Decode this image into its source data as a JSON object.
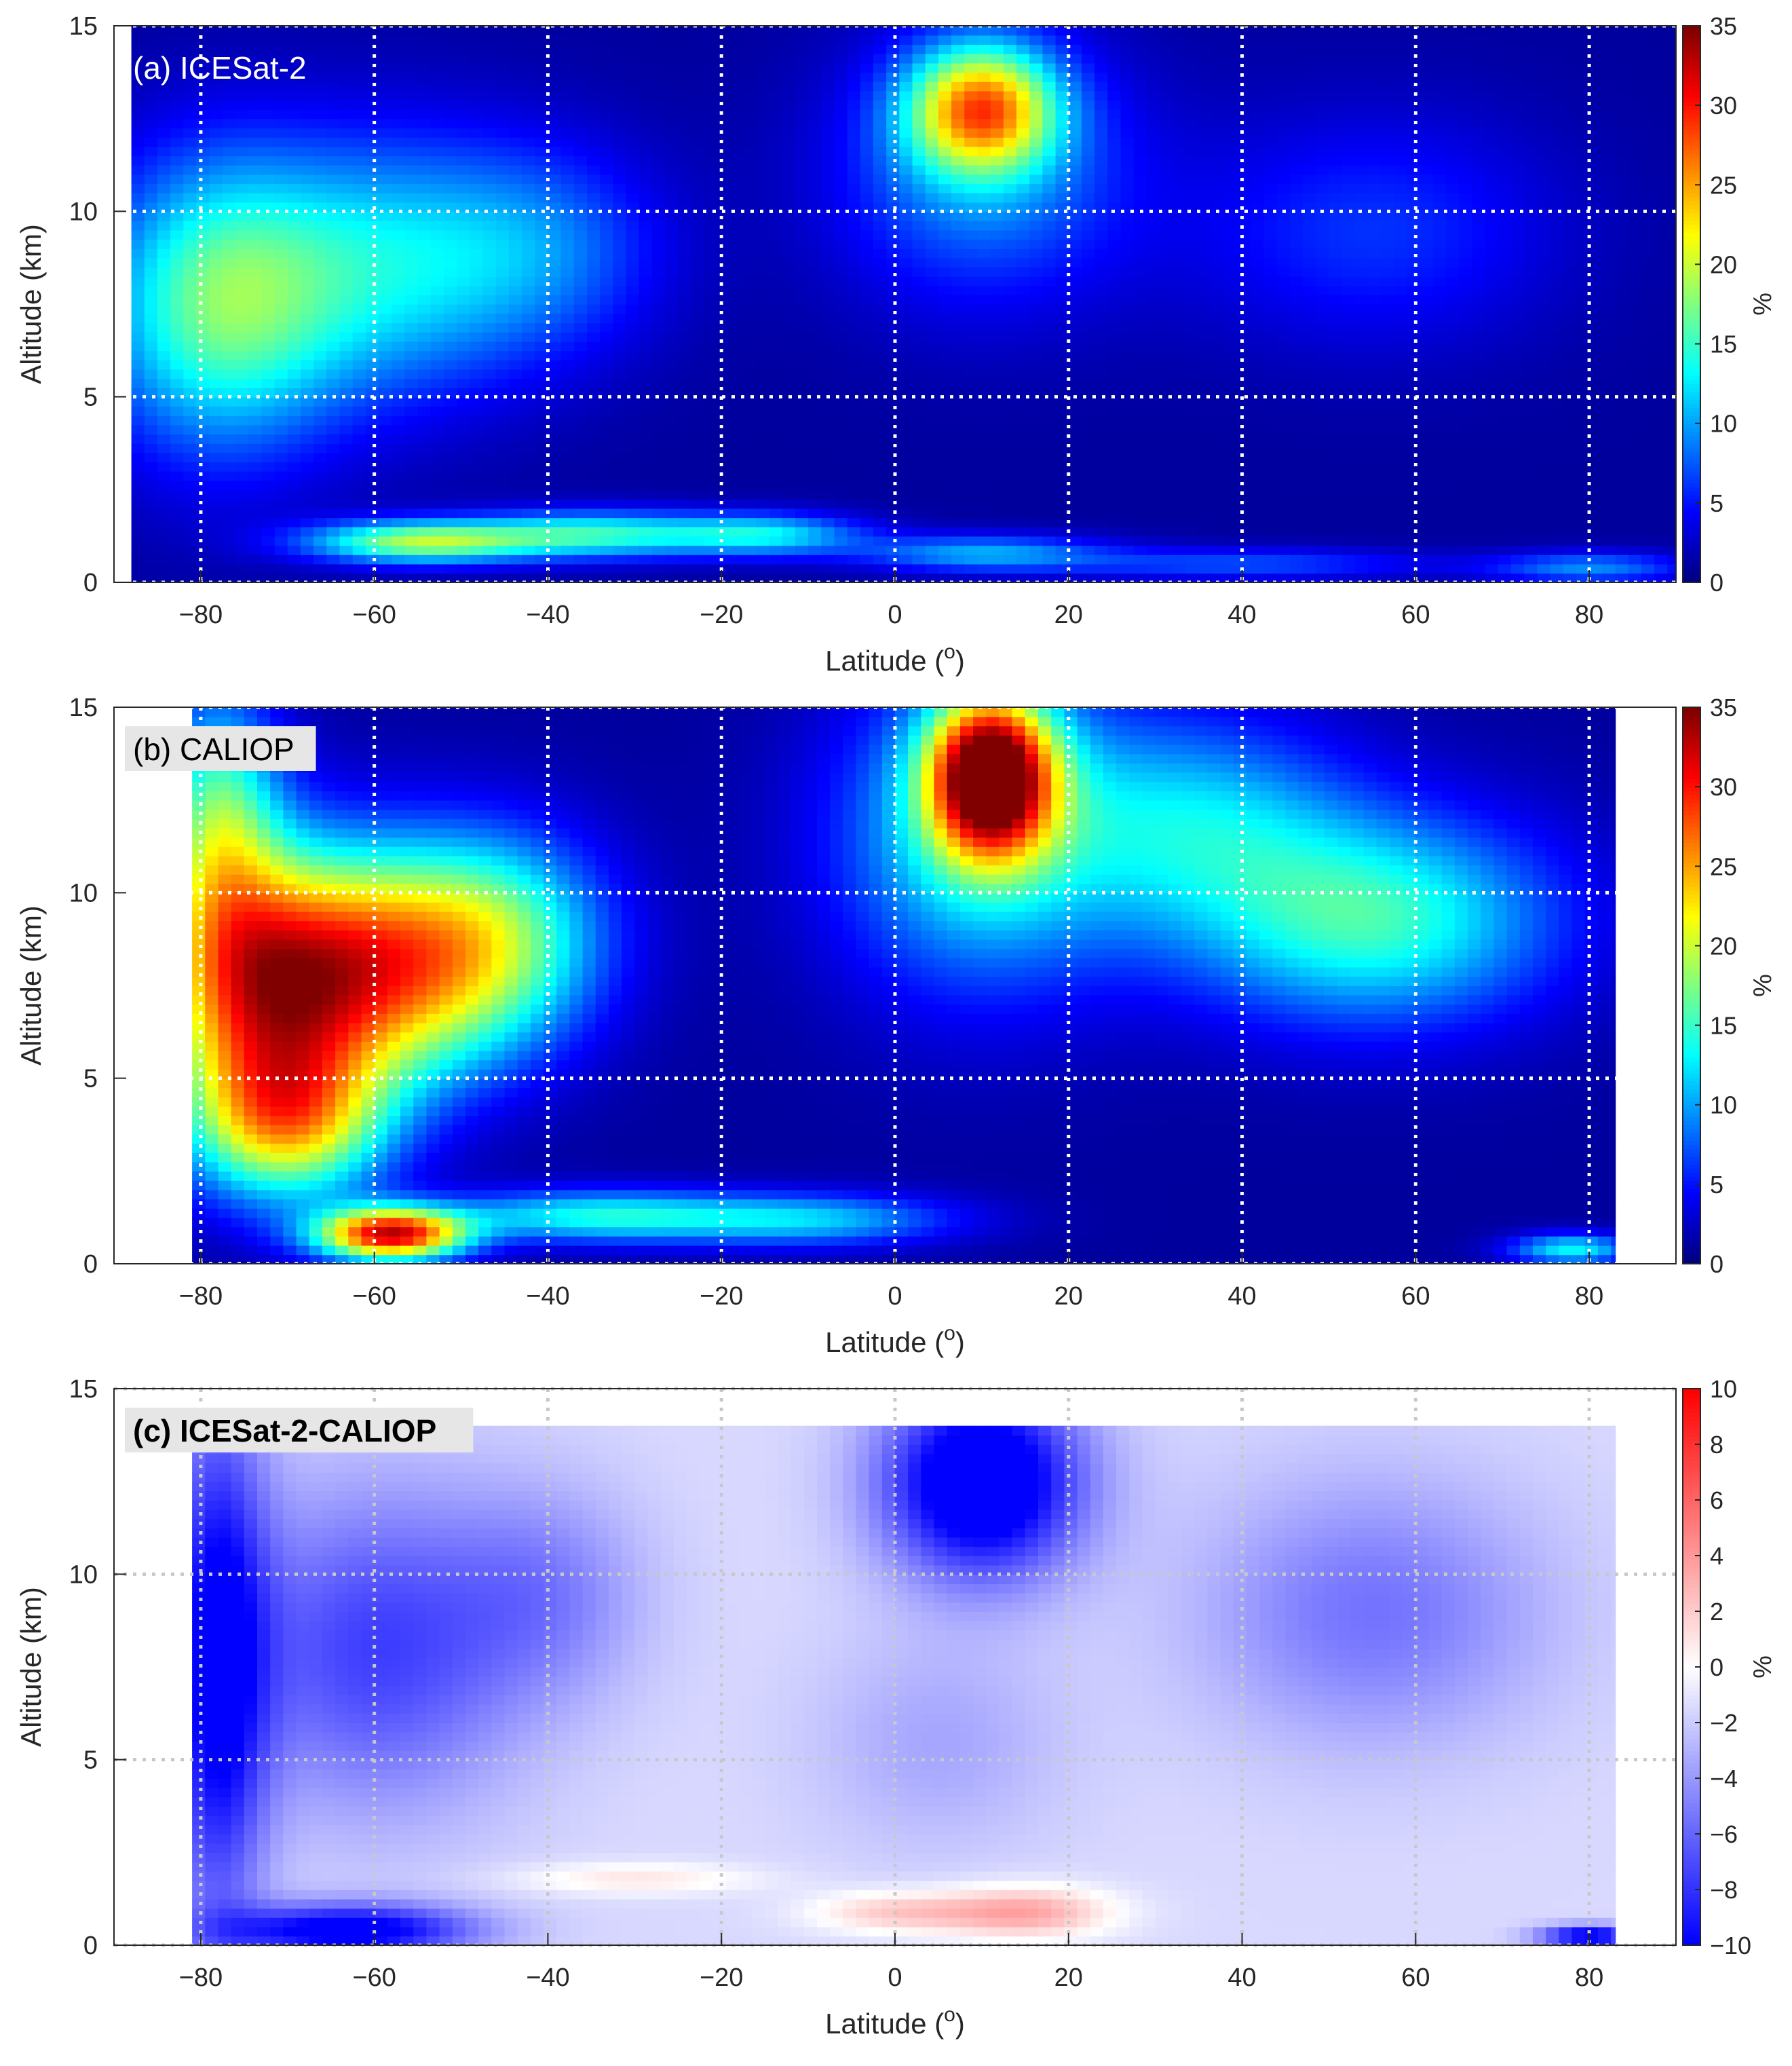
{
  "chart_data": [
    {
      "type": "heatmap",
      "panel_label": "(a) ICESat-2",
      "xlabel": "Latitude (",
      "xlabel_degree": "o",
      "xlabel_close": ")",
      "ylabel": "Altitude (km)",
      "colorbar_label": "%",
      "colormap": "jet",
      "xlim": [
        -90,
        90
      ],
      "ylim": [
        0,
        15
      ],
      "clim": [
        0,
        35
      ],
      "data_lat_range": [
        -88,
        90
      ],
      "x_ticks": [
        "-80",
        "-60",
        "-40",
        "-20",
        "0",
        "20",
        "40",
        "60",
        "80"
      ],
      "y_ticks": [
        "0",
        "5",
        "10",
        "15"
      ],
      "colorbar_ticks": [
        "0",
        "5",
        "10",
        "15",
        "20",
        "25",
        "30",
        "35"
      ],
      "grid": "dotted white",
      "features": [
        {
          "lat": 10,
          "alt": 12.8,
          "sigma_lat": 6,
          "sigma_alt": 1.2,
          "value": 22
        },
        {
          "lat": 10,
          "alt": 11.0,
          "sigma_lat": 12,
          "sigma_alt": 2.5,
          "value": 8
        },
        {
          "lat": -78,
          "alt": 7.5,
          "sigma_lat": 10,
          "sigma_alt": 2.8,
          "value": 15
        },
        {
          "lat": -58,
          "alt": 8.5,
          "sigma_lat": 12,
          "sigma_alt": 2.5,
          "value": 10
        },
        {
          "lat": -40,
          "alt": 9.0,
          "sigma_lat": 10,
          "sigma_alt": 2.0,
          "value": 6
        },
        {
          "lat": 55,
          "alt": 9.5,
          "sigma_lat": 15,
          "sigma_alt": 2.2,
          "value": 5
        },
        {
          "lat": -55,
          "alt": 1.1,
          "sigma_lat": 9,
          "sigma_alt": 0.4,
          "value": 17
        },
        {
          "lat": -35,
          "alt": 1.3,
          "sigma_lat": 10,
          "sigma_alt": 0.45,
          "value": 13
        },
        {
          "lat": -15,
          "alt": 1.3,
          "sigma_lat": 8,
          "sigma_alt": 0.4,
          "value": 11
        },
        {
          "lat": 10,
          "alt": 0.8,
          "sigma_lat": 10,
          "sigma_alt": 0.35,
          "value": 9
        },
        {
          "lat": 40,
          "alt": 0.5,
          "sigma_lat": 15,
          "sigma_alt": 0.3,
          "value": 6
        },
        {
          "lat": 80,
          "alt": 0.4,
          "sigma_lat": 8,
          "sigma_alt": 0.3,
          "value": 8
        }
      ]
    },
    {
      "type": "heatmap",
      "panel_label": "(b) CALIOP",
      "xlabel": "Latitude (",
      "xlabel_degree": "o",
      "xlabel_close": ")",
      "ylabel": "Altitude (km)",
      "colorbar_label": "%",
      "colormap": "jet",
      "xlim": [
        -90,
        90
      ],
      "ylim": [
        0,
        15
      ],
      "clim": [
        0,
        35
      ],
      "data_lat_range": [
        -81,
        83
      ],
      "x_ticks": [
        "-80",
        "-60",
        "-40",
        "-20",
        "0",
        "20",
        "40",
        "60",
        "80"
      ],
      "y_ticks": [
        "0",
        "5",
        "10",
        "15"
      ],
      "colorbar_ticks": [
        "0",
        "5",
        "10",
        "15",
        "20",
        "25",
        "30",
        "35"
      ],
      "grid": "dotted white",
      "features": [
        {
          "lat": 11,
          "alt": 13.2,
          "sigma_lat": 5,
          "sigma_alt": 1.5,
          "value": 33
        },
        {
          "lat": 10,
          "alt": 11.5,
          "sigma_lat": 12,
          "sigma_alt": 3.0,
          "value": 12
        },
        {
          "lat": -73,
          "alt": 7.5,
          "sigma_lat": 9,
          "sigma_alt": 2.5,
          "value": 25
        },
        {
          "lat": -58,
          "alt": 8.0,
          "sigma_lat": 10,
          "sigma_alt": 2.2,
          "value": 20
        },
        {
          "lat": -45,
          "alt": 8.8,
          "sigma_lat": 9,
          "sigma_alt": 2.0,
          "value": 12
        },
        {
          "lat": -78,
          "alt": 12.0,
          "sigma_lat": 5,
          "sigma_alt": 2.5,
          "value": 14
        },
        {
          "lat": -70,
          "alt": 3.8,
          "sigma_lat": 8,
          "sigma_alt": 1.5,
          "value": 18
        },
        {
          "lat": 55,
          "alt": 9.3,
          "sigma_lat": 15,
          "sigma_alt": 2.0,
          "value": 14
        },
        {
          "lat": 35,
          "alt": 12.0,
          "sigma_lat": 12,
          "sigma_alt": 2.0,
          "value": 9
        },
        {
          "lat": -58,
          "alt": 0.8,
          "sigma_lat": 6,
          "sigma_alt": 0.5,
          "value": 30
        },
        {
          "lat": -35,
          "alt": 1.3,
          "sigma_lat": 12,
          "sigma_alt": 0.5,
          "value": 12
        },
        {
          "lat": -10,
          "alt": 1.2,
          "sigma_lat": 12,
          "sigma_alt": 0.5,
          "value": 10
        },
        {
          "lat": 78,
          "alt": 0.4,
          "sigma_lat": 5,
          "sigma_alt": 0.3,
          "value": 12
        }
      ]
    },
    {
      "type": "heatmap",
      "panel_label": "(c) ICESat-2-CALIOP",
      "xlabel": "Latitude (",
      "xlabel_degree": "o",
      "xlabel_close": ")",
      "ylabel": "Altitude (km)",
      "colorbar_label": "%",
      "colormap": "blue-white-red",
      "xlim": [
        -90,
        90
      ],
      "ylim": [
        0,
        15
      ],
      "clim": [
        -10,
        10
      ],
      "data_lat_range": [
        -81,
        83
      ],
      "data_alt_max": 14,
      "x_ticks": [
        "-80",
        "-60",
        "-40",
        "-20",
        "0",
        "20",
        "40",
        "60",
        "80"
      ],
      "y_ticks": [
        "0",
        "5",
        "10",
        "15"
      ],
      "colorbar_ticks": [
        "-10",
        "-8",
        "-6",
        "-4",
        "-2",
        "0",
        "2",
        "4",
        "6",
        "8",
        "10"
      ],
      "grid": "dotted light gray",
      "features": [
        {
          "lat": 10,
          "alt": 12.5,
          "sigma_lat": 8,
          "sigma_alt": 1.8,
          "value": -12
        },
        {
          "lat": -78,
          "alt": 7.5,
          "sigma_lat": 4,
          "sigma_alt": 5.0,
          "value": -9
        },
        {
          "lat": -60,
          "alt": 8.0,
          "sigma_lat": 12,
          "sigma_alt": 3.0,
          "value": -6
        },
        {
          "lat": -40,
          "alt": 9.5,
          "sigma_lat": 8,
          "sigma_alt": 2.0,
          "value": -3
        },
        {
          "lat": 55,
          "alt": 9.0,
          "sigma_lat": 14,
          "sigma_alt": 2.5,
          "value": -4
        },
        {
          "lat": 5,
          "alt": 5.5,
          "sigma_lat": 10,
          "sigma_alt": 2.0,
          "value": -2
        },
        {
          "lat": -63,
          "alt": 0.4,
          "sigma_lat": 10,
          "sigma_alt": 0.5,
          "value": -10
        },
        {
          "lat": -30,
          "alt": 1.8,
          "sigma_lat": 10,
          "sigma_alt": 0.3,
          "value": 2.5
        },
        {
          "lat": 0,
          "alt": 0.9,
          "sigma_lat": 7,
          "sigma_alt": 0.4,
          "value": 3.5
        },
        {
          "lat": 15,
          "alt": 0.9,
          "sigma_lat": 7,
          "sigma_alt": 0.5,
          "value": 5
        },
        {
          "lat": 80,
          "alt": 0.25,
          "sigma_lat": 4,
          "sigma_alt": 0.2,
          "value": -10
        }
      ]
    }
  ]
}
